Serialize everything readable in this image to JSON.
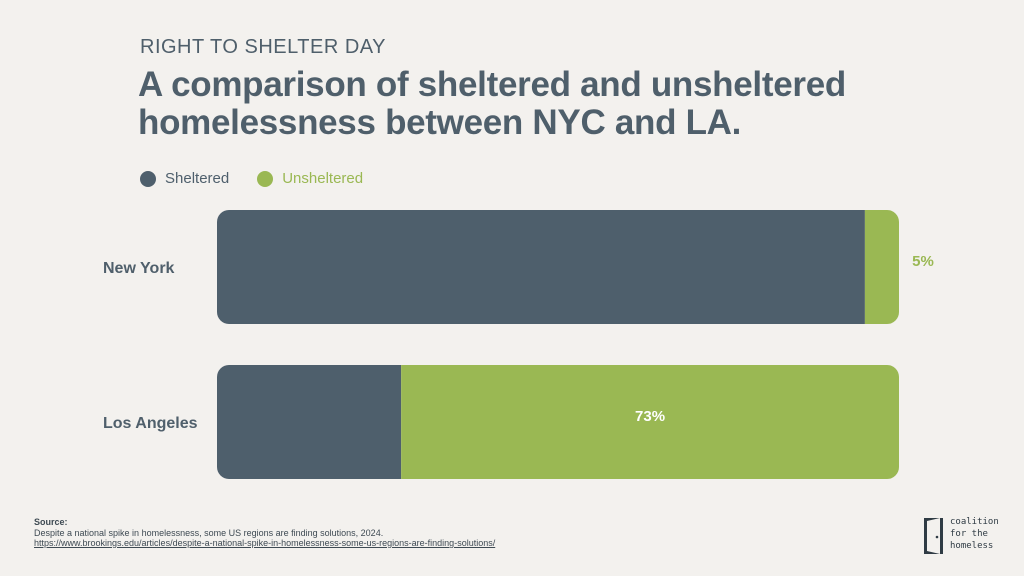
{
  "eyebrow": "RIGHT TO SHELTER DAY",
  "title": "A comparison of sheltered and unsheltered homelessness between NYC and LA.",
  "legend": [
    {
      "label": "Sheltered",
      "color": "#4e5f6c"
    },
    {
      "label": "Unsheltered",
      "color": "#9ab853"
    }
  ],
  "colors": {
    "sheltered": "#4e5f6c",
    "unsheltered": "#9ab853",
    "text": "#4f5f6b"
  },
  "chart_data": {
    "type": "bar",
    "orientation": "horizontal",
    "stacked": true,
    "categories": [
      "New York",
      "Los Angeles"
    ],
    "series": [
      {
        "name": "Sheltered",
        "values": [
          95,
          27
        ]
      },
      {
        "name": "Unsheltered",
        "values": [
          5,
          73
        ]
      }
    ],
    "data_labels": {
      "New York": "5%",
      "Los Angeles": "73%"
    },
    "xlim": [
      0,
      100
    ],
    "grid": false,
    "legend_position": "top-left"
  },
  "source": {
    "heading": "Source:",
    "text": "Despite a national spike in homelessness, some US regions are finding solutions, 2024.",
    "url": "https://www.brookings.edu/articles/despite-a-national-spike-in-homelessness-some-us-regions-are-finding-solutions/"
  },
  "logo": {
    "text": "coalition\nfor the\nhomeless",
    "icon": "door-icon"
  }
}
